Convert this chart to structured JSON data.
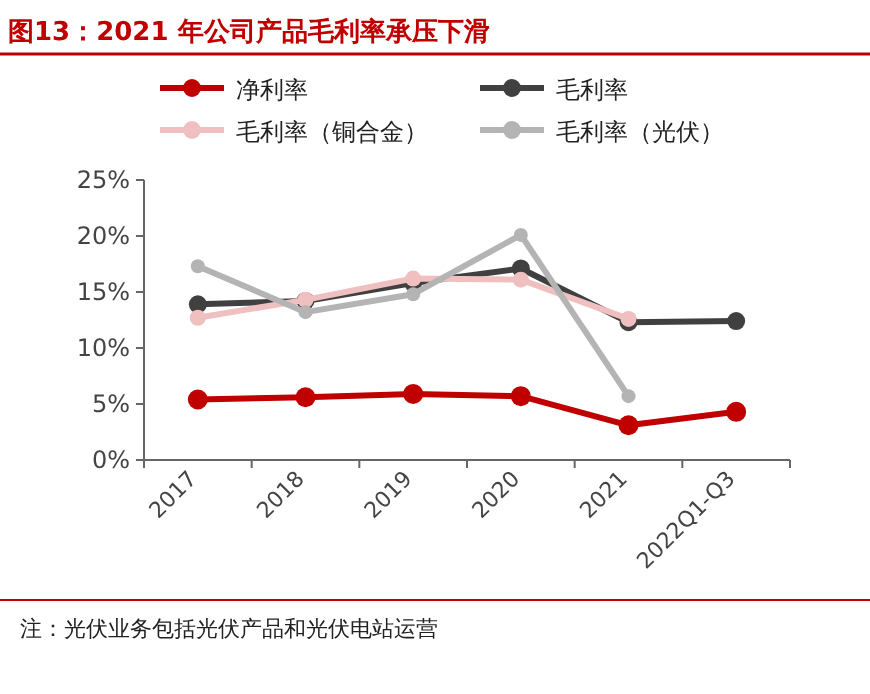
{
  "chart_data": {
    "type": "line",
    "title": "图13：2021 年公司产品毛利率承压下滑",
    "categories": [
      "2017",
      "2018",
      "2019",
      "2020",
      "2021",
      "2022Q1-Q3"
    ],
    "series": [
      {
        "name": "净利率",
        "color": "#c00000",
        "values": [
          5.4,
          5.6,
          5.9,
          5.7,
          3.1,
          4.3
        ]
      },
      {
        "name": "毛利率",
        "color": "#404040",
        "values": [
          13.9,
          14.2,
          15.8,
          17.1,
          12.3,
          12.4
        ]
      },
      {
        "name": "毛利率（铜合金）",
        "color": "#f0c0c0",
        "values": [
          12.7,
          14.3,
          16.2,
          16.1,
          12.6,
          null
        ]
      },
      {
        "name": "毛利率（光伏）",
        "color": "#b4b4b4",
        "values": [
          17.3,
          13.2,
          14.8,
          20.1,
          5.7,
          null
        ]
      }
    ],
    "ylim": [
      0,
      25
    ],
    "yticks": [
      {
        "value": 0,
        "label": "0%"
      },
      {
        "value": 5,
        "label": "5%"
      },
      {
        "value": 10,
        "label": "10%"
      },
      {
        "value": 15,
        "label": "15%"
      },
      {
        "value": 20,
        "label": "20%"
      },
      {
        "value": 25,
        "label": "25%"
      }
    ],
    "marker": "circle",
    "legend": "top",
    "grid": false,
    "annotations": [
      "注：光伏业务包括光伏产品和光伏电站运营"
    ]
  }
}
